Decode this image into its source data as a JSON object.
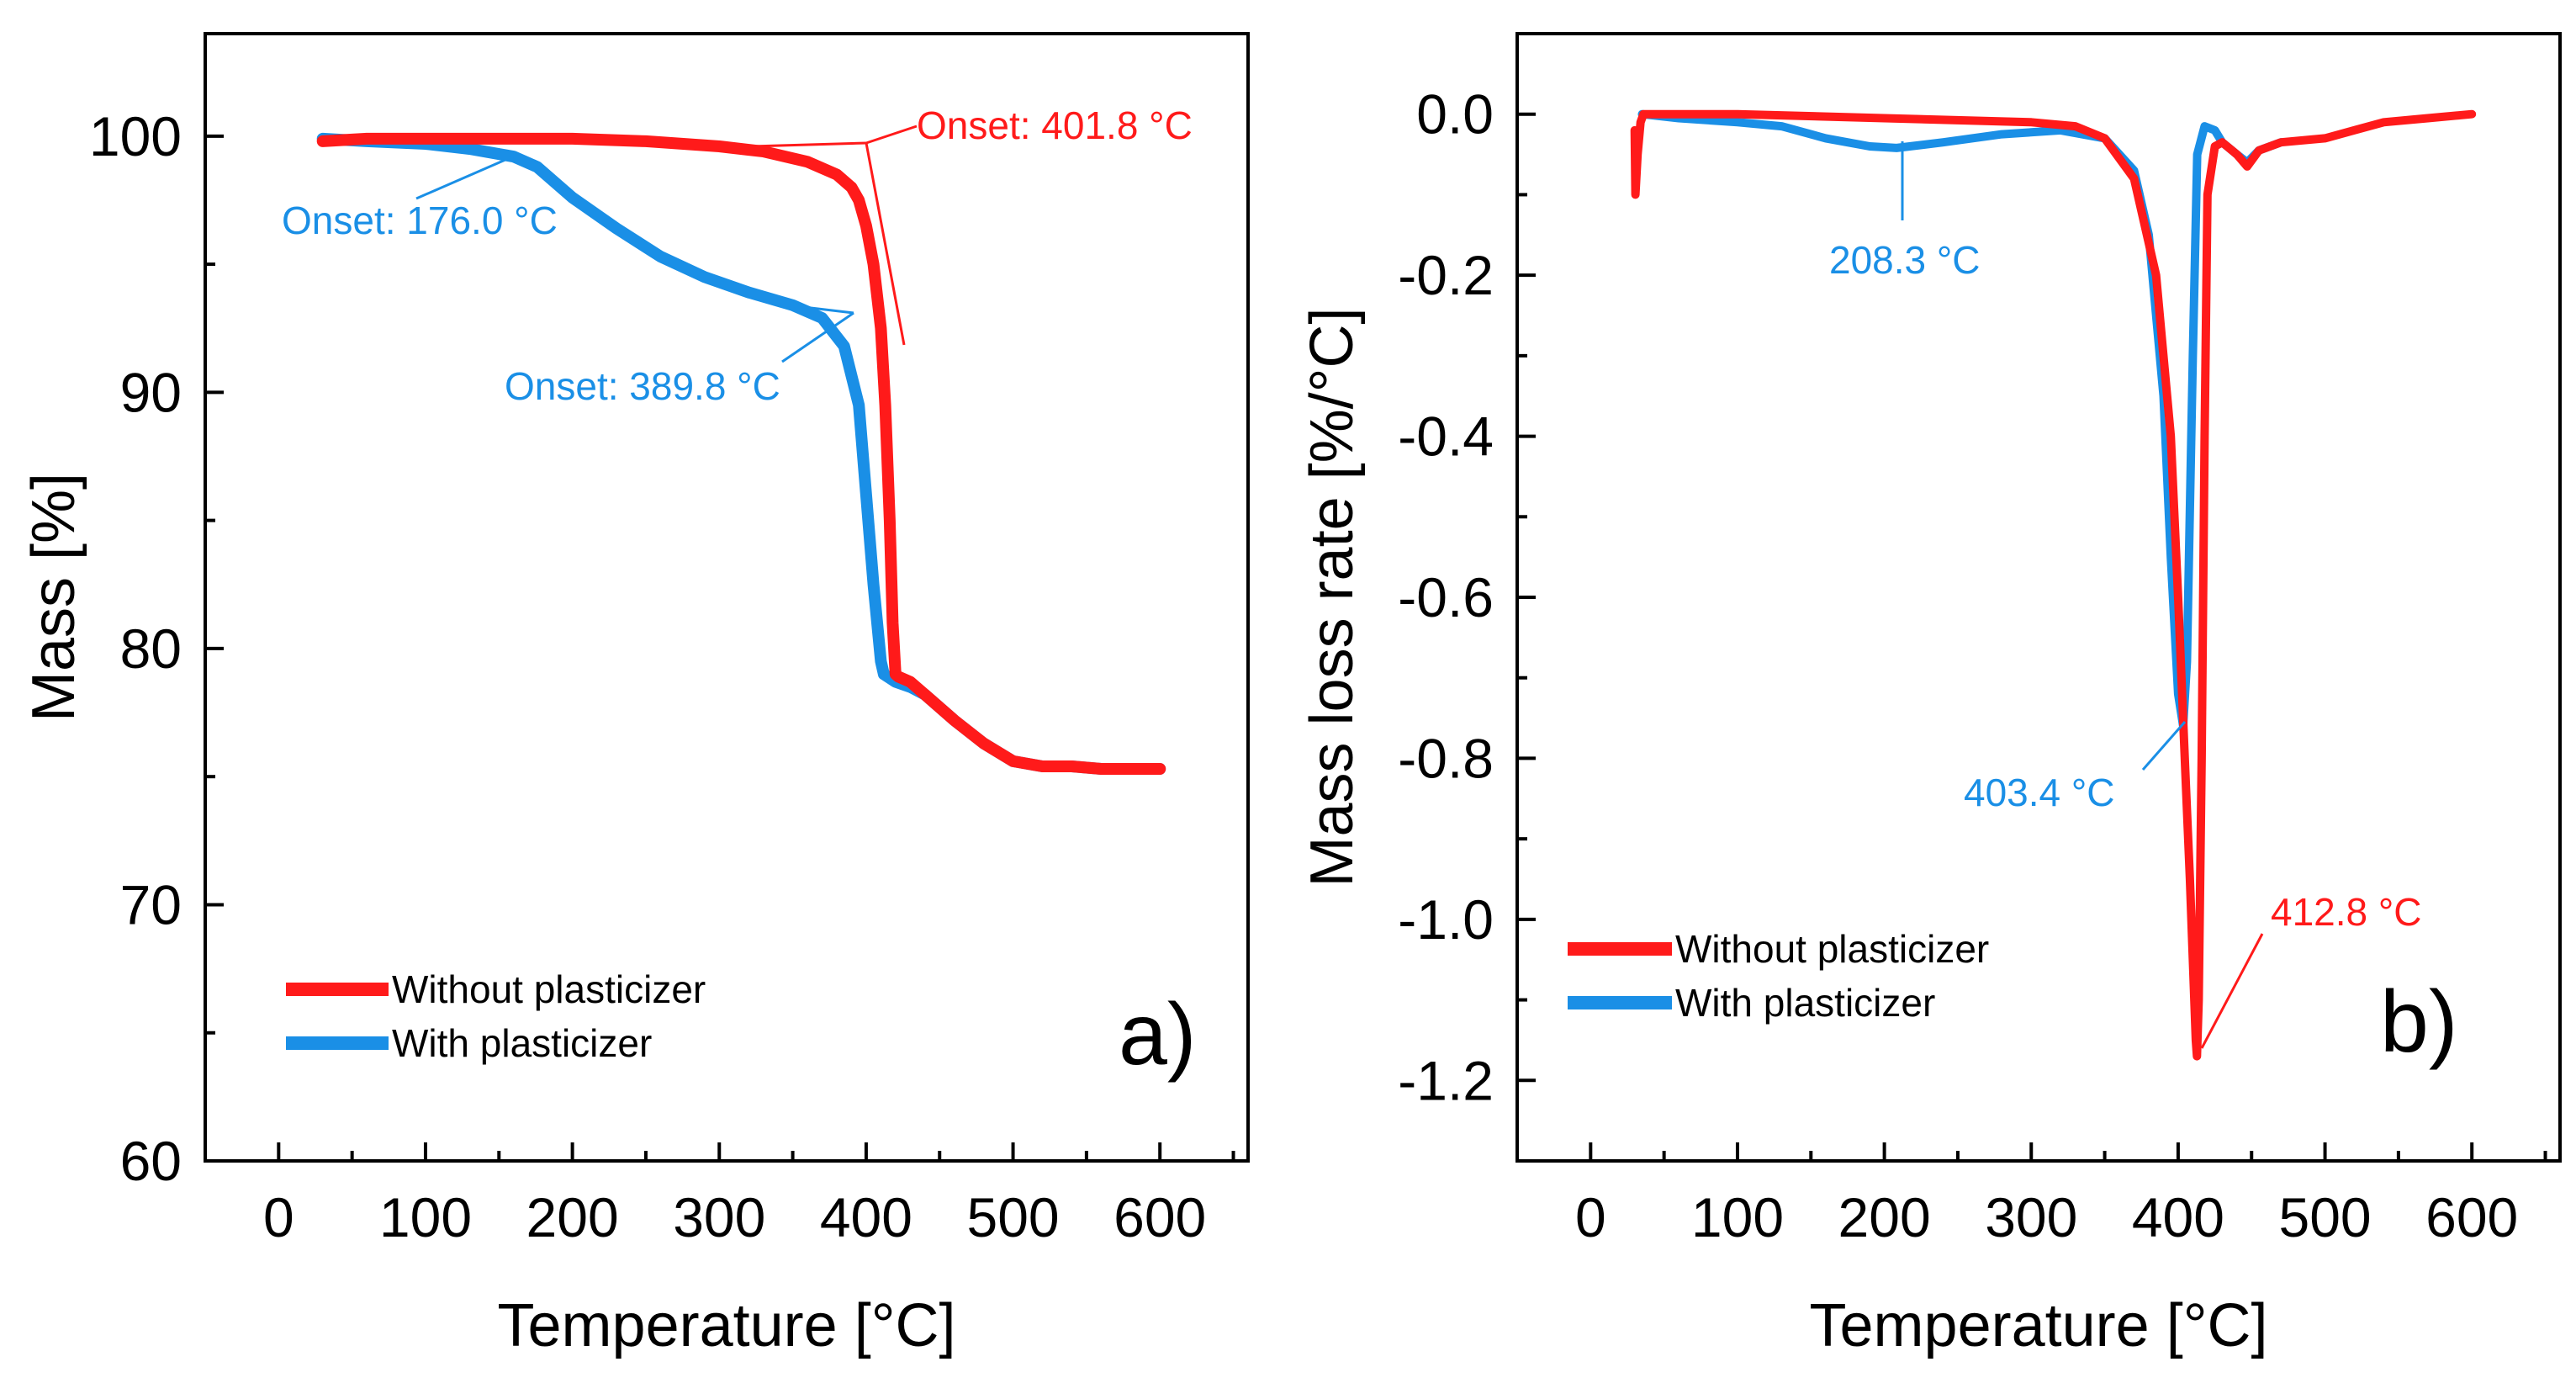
{
  "chart_data": [
    {
      "type": "line",
      "panel_label": "a)",
      "xlabel": "Temperature [°C]",
      "ylabel": "Mass [%]",
      "xlim": [
        -50,
        660
      ],
      "ylim": [
        60,
        104
      ],
      "xticks": [
        0,
        100,
        200,
        300,
        400,
        500,
        600
      ],
      "yticks": [
        60,
        70,
        80,
        90,
        100
      ],
      "xticklabels": [
        "0",
        "100",
        "200",
        "300",
        "400",
        "500",
        "600"
      ],
      "yticklabels": [
        "60",
        "70",
        "80",
        "90",
        "100"
      ],
      "legend_position": "bottom-left",
      "series": [
        {
          "name": "Without plasticizer",
          "color": "#ff1a1a",
          "x": [
            30,
            60,
            100,
            150,
            200,
            250,
            300,
            330,
            360,
            380,
            390,
            395,
            400,
            405,
            410,
            413,
            416,
            418,
            420,
            422,
            430,
            440,
            460,
            480,
            500,
            520,
            540,
            560,
            580,
            600
          ],
          "y": [
            99.8,
            99.9,
            99.9,
            99.9,
            99.9,
            99.8,
            99.6,
            99.4,
            99.0,
            98.5,
            98.0,
            97.5,
            96.5,
            95.0,
            92.5,
            89.5,
            85.0,
            81.0,
            79.0,
            78.9,
            78.7,
            78.2,
            77.2,
            76.3,
            75.6,
            75.4,
            75.4,
            75.3,
            75.3,
            75.3
          ]
        },
        {
          "name": "With plasticizer",
          "color": "#1a8fe6",
          "x": [
            30,
            60,
            100,
            130,
            160,
            176,
            200,
            230,
            260,
            290,
            320,
            350,
            370,
            385,
            395,
            400,
            405,
            410,
            412,
            420,
            430,
            440,
            460,
            480,
            500,
            520,
            540,
            560,
            580,
            600
          ],
          "y": [
            99.9,
            99.8,
            99.7,
            99.5,
            99.2,
            98.8,
            97.6,
            96.4,
            95.3,
            94.5,
            93.9,
            93.4,
            92.9,
            91.8,
            89.5,
            86.0,
            82.5,
            79.5,
            79.0,
            78.7,
            78.5,
            78.2,
            77.2,
            76.3,
            75.6,
            75.4,
            75.4,
            75.3,
            75.3,
            75.3
          ]
        }
      ],
      "annotations": [
        {
          "text": "Onset: 401.8 °C",
          "x": 401.8,
          "y": 99.4,
          "color": "#ff1a1a"
        },
        {
          "text": "Onset: 176.0 °C",
          "x": 176.0,
          "y": 99.4,
          "color": "#1a8fe6"
        },
        {
          "text": "Onset: 389.8 °C",
          "x": 389.8,
          "y": 93.0,
          "color": "#1a8fe6"
        }
      ]
    },
    {
      "type": "line",
      "panel_label": "b)",
      "xlabel": "Temperature [°C]",
      "ylabel": "Mass loss rate [%/°C]",
      "xlim": [
        -50,
        660
      ],
      "ylim": [
        -1.3,
        0.1
      ],
      "xticks": [
        0,
        100,
        200,
        300,
        400,
        500,
        600
      ],
      "yticks": [
        -1.2,
        -1.0,
        -0.8,
        -0.6,
        -0.4,
        -0.2,
        0.0
      ],
      "xticklabels": [
        "0",
        "100",
        "200",
        "300",
        "400",
        "500",
        "600"
      ],
      "yticklabels": [
        "-1.2",
        "-1.0",
        "-0.8",
        "-0.6",
        "-0.4",
        "-0.2",
        "0.0"
      ],
      "legend_position": "bottom-left",
      "series": [
        {
          "name": "Without plasticizer",
          "color": "#ff1a1a",
          "x": [
            30,
            30.5,
            32,
            34,
            36,
            40,
            100,
            200,
            300,
            330,
            350,
            370,
            385,
            395,
            400,
            405,
            408,
            410,
            412,
            412.8,
            414,
            416,
            418,
            420,
            425,
            430,
            440,
            447,
            455,
            470,
            500,
            540,
            570,
            600
          ],
          "y": [
            -0.02,
            -0.1,
            -0.05,
            -0.01,
            0.0,
            0.0,
            0.0,
            -0.005,
            -0.01,
            -0.015,
            -0.03,
            -0.08,
            -0.2,
            -0.4,
            -0.6,
            -0.82,
            -0.95,
            -1.05,
            -1.15,
            -1.17,
            -1.1,
            -0.8,
            -0.4,
            -0.1,
            -0.04,
            -0.035,
            -0.05,
            -0.065,
            -0.045,
            -0.035,
            -0.03,
            -0.01,
            -0.005,
            0.0
          ]
        },
        {
          "name": "With plasticizer",
          "color": "#1a8fe6",
          "x": [
            35,
            60,
            100,
            130,
            160,
            190,
            208.3,
            240,
            280,
            320,
            350,
            370,
            380,
            390,
            395,
            400,
            403.4,
            406,
            410,
            413,
            418,
            425,
            430,
            440,
            447,
            455,
            470
          ],
          "y": [
            0.0,
            -0.005,
            -0.01,
            -0.015,
            -0.03,
            -0.04,
            -0.042,
            -0.035,
            -0.025,
            -0.02,
            -0.03,
            -0.07,
            -0.15,
            -0.35,
            -0.55,
            -0.72,
            -0.76,
            -0.68,
            -0.3,
            -0.05,
            -0.015,
            -0.02,
            -0.035,
            -0.05,
            -0.06,
            -0.045,
            -0.035
          ]
        }
      ],
      "annotations": [
        {
          "text": "208.3 °C",
          "x": 208.3,
          "y": -0.042,
          "color": "#1a8fe6"
        },
        {
          "text": "403.4 °C",
          "x": 403.4,
          "y": -0.76,
          "color": "#1a8fe6"
        },
        {
          "text": "412.8 °C",
          "x": 412.8,
          "y": -1.17,
          "color": "#ff1a1a"
        }
      ]
    }
  ]
}
